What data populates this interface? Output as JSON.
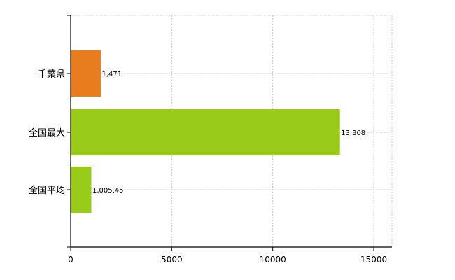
{
  "chart_data": {
    "type": "bar",
    "orientation": "horizontal",
    "categories": [
      "千葉県",
      "全国最大",
      "全国平均"
    ],
    "values": [
      1471,
      13308,
      1005.45
    ],
    "value_labels": [
      "1,471",
      "13,308",
      "1,005.45"
    ],
    "colors": [
      "#e87d20",
      "#99cc1a",
      "#99cc1a"
    ],
    "xlim": [
      0,
      15900
    ],
    "x_ticks": [
      0,
      5000,
      10000,
      15000
    ],
    "x_tick_labels": [
      "0",
      "5000",
      "10000",
      "15000"
    ],
    "grid": true,
    "title": "",
    "xlabel": "",
    "ylabel": ""
  }
}
